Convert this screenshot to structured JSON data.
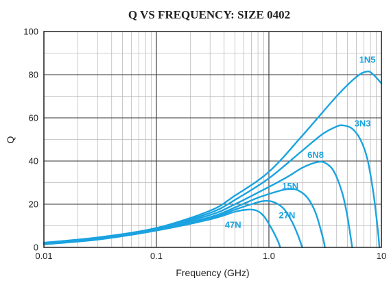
{
  "chart_data": {
    "type": "line",
    "title": "Q VS FREQUENCY: SIZE 0402",
    "xlabel": "Frequency (GHz)",
    "ylabel": "Q",
    "x_scale": "log",
    "xlim": [
      0.01,
      10
    ],
    "ylim": [
      0,
      100
    ],
    "x_ticks": [
      "0.01",
      "0.1",
      "1.0",
      "10"
    ],
    "x_tick_values": [
      0.01,
      0.1,
      1,
      10
    ],
    "y_ticks": [
      "0",
      "20",
      "40",
      "60",
      "80",
      "100"
    ],
    "y_tick_values": [
      0,
      20,
      40,
      60,
      80,
      100
    ],
    "grid": true,
    "line_color": "#1aa3e0",
    "series": [
      {
        "name": "1N5",
        "points": [
          [
            0.01,
            2.2
          ],
          [
            0.03,
            4.6
          ],
          [
            0.1,
            9
          ],
          [
            0.3,
            17
          ],
          [
            0.5,
            24
          ],
          [
            1.0,
            35
          ],
          [
            2.0,
            52
          ],
          [
            4.0,
            70
          ],
          [
            6.0,
            79
          ],
          [
            7.5,
            81.5
          ],
          [
            8.5,
            80
          ],
          [
            10,
            76
          ]
        ]
      },
      {
        "name": "3N3",
        "points": [
          [
            0.01,
            2
          ],
          [
            0.03,
            4.4
          ],
          [
            0.1,
            8.8
          ],
          [
            0.3,
            16
          ],
          [
            0.5,
            22
          ],
          [
            1.0,
            32
          ],
          [
            2.0,
            45
          ],
          [
            3.0,
            52.5
          ],
          [
            4.0,
            56
          ],
          [
            4.6,
            56.5
          ],
          [
            5.5,
            55
          ],
          [
            6.5,
            50
          ],
          [
            7.5,
            41
          ],
          [
            8.5,
            25
          ],
          [
            9.3,
            8
          ],
          [
            9.6,
            0
          ]
        ]
      },
      {
        "name": "6N8",
        "points": [
          [
            0.01,
            1.8
          ],
          [
            0.03,
            4.2
          ],
          [
            0.1,
            8.5
          ],
          [
            0.3,
            15
          ],
          [
            0.5,
            20
          ],
          [
            1.0,
            28
          ],
          [
            1.5,
            33
          ],
          [
            2.0,
            37
          ],
          [
            2.7,
            39.5
          ],
          [
            3.2,
            39
          ],
          [
            3.8,
            35
          ],
          [
            4.5,
            25
          ],
          [
            5.0,
            14
          ],
          [
            5.5,
            0
          ]
        ]
      },
      {
        "name": "15N",
        "points": [
          [
            0.01,
            1.6
          ],
          [
            0.03,
            4
          ],
          [
            0.1,
            8.3
          ],
          [
            0.3,
            14
          ],
          [
            0.5,
            18.5
          ],
          [
            0.8,
            23
          ],
          [
            1.2,
            26
          ],
          [
            1.5,
            27
          ],
          [
            1.8,
            26.5
          ],
          [
            2.2,
            23
          ],
          [
            2.6,
            16
          ],
          [
            3.0,
            5
          ],
          [
            3.15,
            0
          ]
        ]
      },
      {
        "name": "27N",
        "points": [
          [
            0.01,
            1.5
          ],
          [
            0.03,
            3.8
          ],
          [
            0.1,
            8
          ],
          [
            0.3,
            13.5
          ],
          [
            0.5,
            17.5
          ],
          [
            0.7,
            20
          ],
          [
            0.9,
            21.5
          ],
          [
            1.1,
            21
          ],
          [
            1.35,
            18
          ],
          [
            1.6,
            12
          ],
          [
            1.8,
            6
          ],
          [
            1.98,
            0
          ]
        ]
      },
      {
        "name": "47N",
        "points": [
          [
            0.01,
            1.4
          ],
          [
            0.03,
            3.6
          ],
          [
            0.1,
            7.8
          ],
          [
            0.3,
            13
          ],
          [
            0.5,
            16.5
          ],
          [
            0.65,
            17.5
          ],
          [
            0.78,
            17
          ],
          [
            0.9,
            14.5
          ],
          [
            1.05,
            9
          ],
          [
            1.2,
            3
          ],
          [
            1.26,
            0
          ]
        ]
      }
    ]
  },
  "label_anchors": [
    {
      "name": "1N5",
      "x": 7.5,
      "y": 85.5
    },
    {
      "name": "3N3",
      "x": 6.8,
      "y": 56
    },
    {
      "name": "6N8",
      "x": 2.6,
      "y": 41.5
    },
    {
      "name": "15N",
      "x": 1.55,
      "y": 27
    },
    {
      "name": "27N",
      "x": 1.45,
      "y": 13.5
    },
    {
      "name": "47N",
      "x": 0.48,
      "y": 9
    }
  ]
}
